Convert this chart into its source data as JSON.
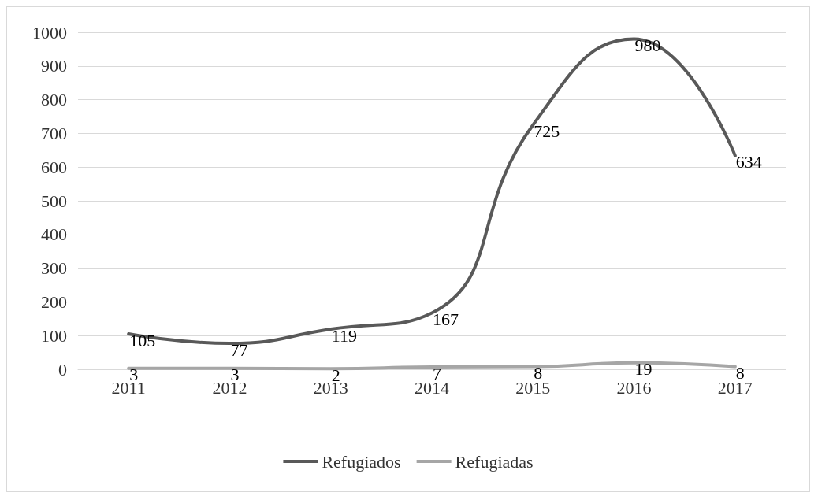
{
  "chart_data": {
    "type": "line",
    "categories": [
      "2011",
      "2012",
      "2013",
      "2014",
      "2015",
      "2016",
      "2017"
    ],
    "series": [
      {
        "name": "Refugiados",
        "color": "#595959",
        "values": [
          105,
          77,
          119,
          167,
          725,
          980,
          634
        ]
      },
      {
        "name": "Refugiadas",
        "color": "#a6a6a6",
        "values": [
          3,
          3,
          2,
          7,
          8,
          19,
          8
        ]
      }
    ],
    "ylim": [
      0,
      1000
    ],
    "yticks": [
      0,
      100,
      200,
      300,
      400,
      500,
      600,
      700,
      800,
      900,
      1000
    ],
    "grid": "y",
    "legend": "bottom",
    "data_labels": true,
    "marker": "none",
    "line_style": "solid"
  }
}
